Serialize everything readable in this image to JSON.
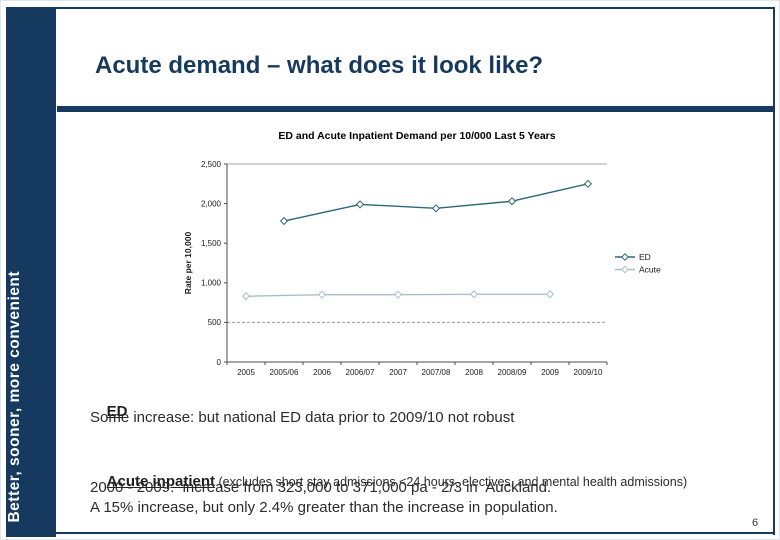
{
  "slide": {
    "title": "Acute demand – what does it look like?",
    "sidebar_text": "Better, sooner, more convenient",
    "page_number": "6"
  },
  "colors": {
    "brand_navy": "#16395F",
    "ed_line": "#2E6876",
    "acute_line": "#A6BFC9",
    "gridline": "#9b9b9b",
    "axis": "#4d4d4d"
  },
  "chart_data": {
    "type": "line",
    "title": "ED and Acute Inpatient Demand per 10/000 Last 5 Years",
    "xlabel": "",
    "ylabel": "Rate per 10,000",
    "ylim": [
      0,
      2500
    ],
    "ytick_step": 500,
    "yticks": [
      "0",
      "500",
      "1,000",
      "1,500",
      "2,000",
      "2,500"
    ],
    "categories": [
      "2005",
      "2005/06",
      "2006",
      "2006/07",
      "2007",
      "2007/08",
      "2008",
      "2008/09",
      "2009",
      "2009/10"
    ],
    "grid": "dashed horizontal gridline at 500 only; solid top border at 2500",
    "legend_position": "right",
    "series": [
      {
        "name": "ED",
        "color": "#2E6876",
        "values": [
          null,
          1780,
          null,
          1990,
          null,
          1940,
          null,
          2030,
          null,
          2250
        ]
      },
      {
        "name": "Acute",
        "color": "#A6BFC9",
        "values": [
          830,
          null,
          850,
          null,
          850,
          null,
          855,
          null,
          855,
          null
        ]
      }
    ]
  },
  "notes": {
    "ed_heading": "ED",
    "ed_body": "Some increase: but national ED data prior to 2009/10 not robust",
    "acute_heading": "Acute inpatient",
    "acute_note": " (excludes short stay admissions <24 hours, electives, and mental health admissions)",
    "acute_line1": "2000 - 2009:  increase from 323,000 to 371,000 pa - 2/3 in  Auckland.",
    "acute_line2": "A 15% increase, but only 2.4% greater than the increase in population."
  }
}
